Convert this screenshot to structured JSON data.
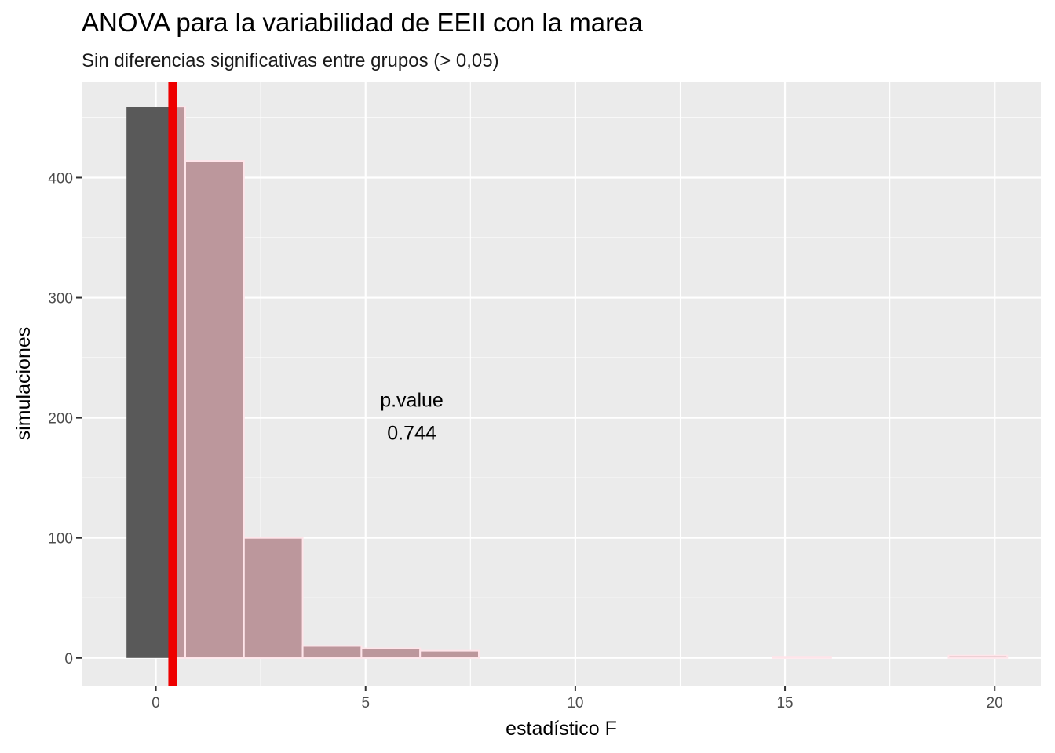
{
  "chart_data": {
    "type": "bar",
    "title": "ANOVA para la variabilidad de EEII con la marea",
    "subtitle": "Sin diferencias significativas entre grupos (> 0,05)",
    "xlabel": "estadístico F",
    "ylabel": "simulaciones",
    "xlim": [
      -1.77,
      21.1
    ],
    "ylim": [
      -23,
      480
    ],
    "x_ticks": [
      0,
      5,
      10,
      15,
      20
    ],
    "y_ticks": [
      0,
      100,
      200,
      300,
      400
    ],
    "bins": [
      {
        "x0": -0.7,
        "x1": 0.7,
        "count": 459
      },
      {
        "x0": 0.7,
        "x1": 2.1,
        "count": 414
      },
      {
        "x0": 2.1,
        "x1": 3.5,
        "count": 100
      },
      {
        "x0": 3.5,
        "x1": 4.9,
        "count": 10
      },
      {
        "x0": 4.9,
        "x1": 6.3,
        "count": 8
      },
      {
        "x0": 6.3,
        "x1": 7.7,
        "count": 6
      },
      {
        "x0": 7.7,
        "x1": 9.1,
        "count": 0
      },
      {
        "x0": 9.1,
        "x1": 10.5,
        "count": 0
      },
      {
        "x0": 10.5,
        "x1": 11.9,
        "count": 0
      },
      {
        "x0": 11.9,
        "x1": 13.3,
        "count": 0
      },
      {
        "x0": 13.3,
        "x1": 14.7,
        "count": 0
      },
      {
        "x0": 14.7,
        "x1": 16.1,
        "count": 1
      },
      {
        "x0": 16.1,
        "x1": 17.5,
        "count": 0
      },
      {
        "x0": 17.5,
        "x1": 18.9,
        "count": 0
      },
      {
        "x0": 18.9,
        "x1": 20.3,
        "count": 2
      }
    ],
    "observed_F": 0.4,
    "shade_direction": "right",
    "annotation": {
      "label": "p.value",
      "value": "0.744",
      "x": 6.1,
      "y": 215
    },
    "colors": {
      "panel_bg": "#ebebeb",
      "grid": "#ffffff",
      "bar_fill": "#595959",
      "shade_fill": "#bc979c",
      "shade_stroke": "#ffe5ea",
      "observed_line": "#ee0000"
    },
    "grid": true,
    "legend": "none"
  }
}
